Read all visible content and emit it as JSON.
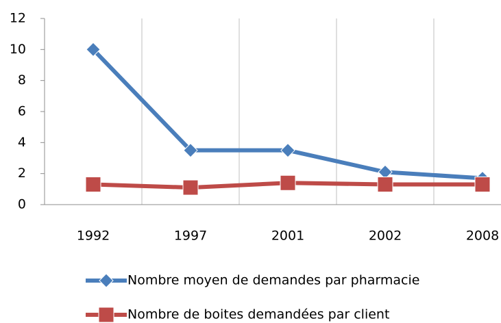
{
  "chart_data": {
    "type": "line",
    "categories": [
      "1992",
      "1997",
      "2001",
      "2002",
      "2008"
    ],
    "series": [
      {
        "name": "Nombre moyen de demandes par pharmacie",
        "color": "#4a7ebb",
        "marker": "diamond",
        "values": [
          10,
          3.5,
          3.5,
          2.1,
          1.7
        ]
      },
      {
        "name": "Nombre de boites demandées par client",
        "color": "#be4b48",
        "marker": "square",
        "values": [
          1.3,
          1.1,
          1.4,
          1.3,
          1.3
        ]
      }
    ],
    "ylim": [
      0,
      12
    ],
    "yticks": [
      0,
      2,
      4,
      6,
      8,
      10,
      12
    ],
    "legend": "bottom"
  }
}
